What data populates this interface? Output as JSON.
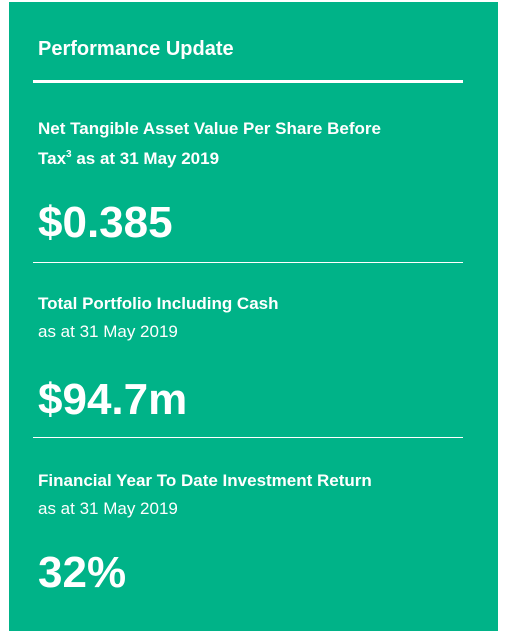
{
  "title": "Performance Update",
  "metrics": [
    {
      "label_line1": "Net Tangible Asset Value Per Share Before",
      "label_line2_prefix": "Tax",
      "label_line2_superscript": "3",
      "label_line2_suffix": " as at 31 May 2019",
      "value": "$0.385"
    },
    {
      "label": "Total Portfolio Including Cash",
      "sublabel": "as at 31 May 2019",
      "value": "$94.7m"
    },
    {
      "label": "Financial Year To Date Investment Return",
      "sublabel": "as at 31 May 2019",
      "value": "32%"
    }
  ],
  "colors": {
    "panel_background": "#00b388",
    "text": "#ffffff"
  }
}
